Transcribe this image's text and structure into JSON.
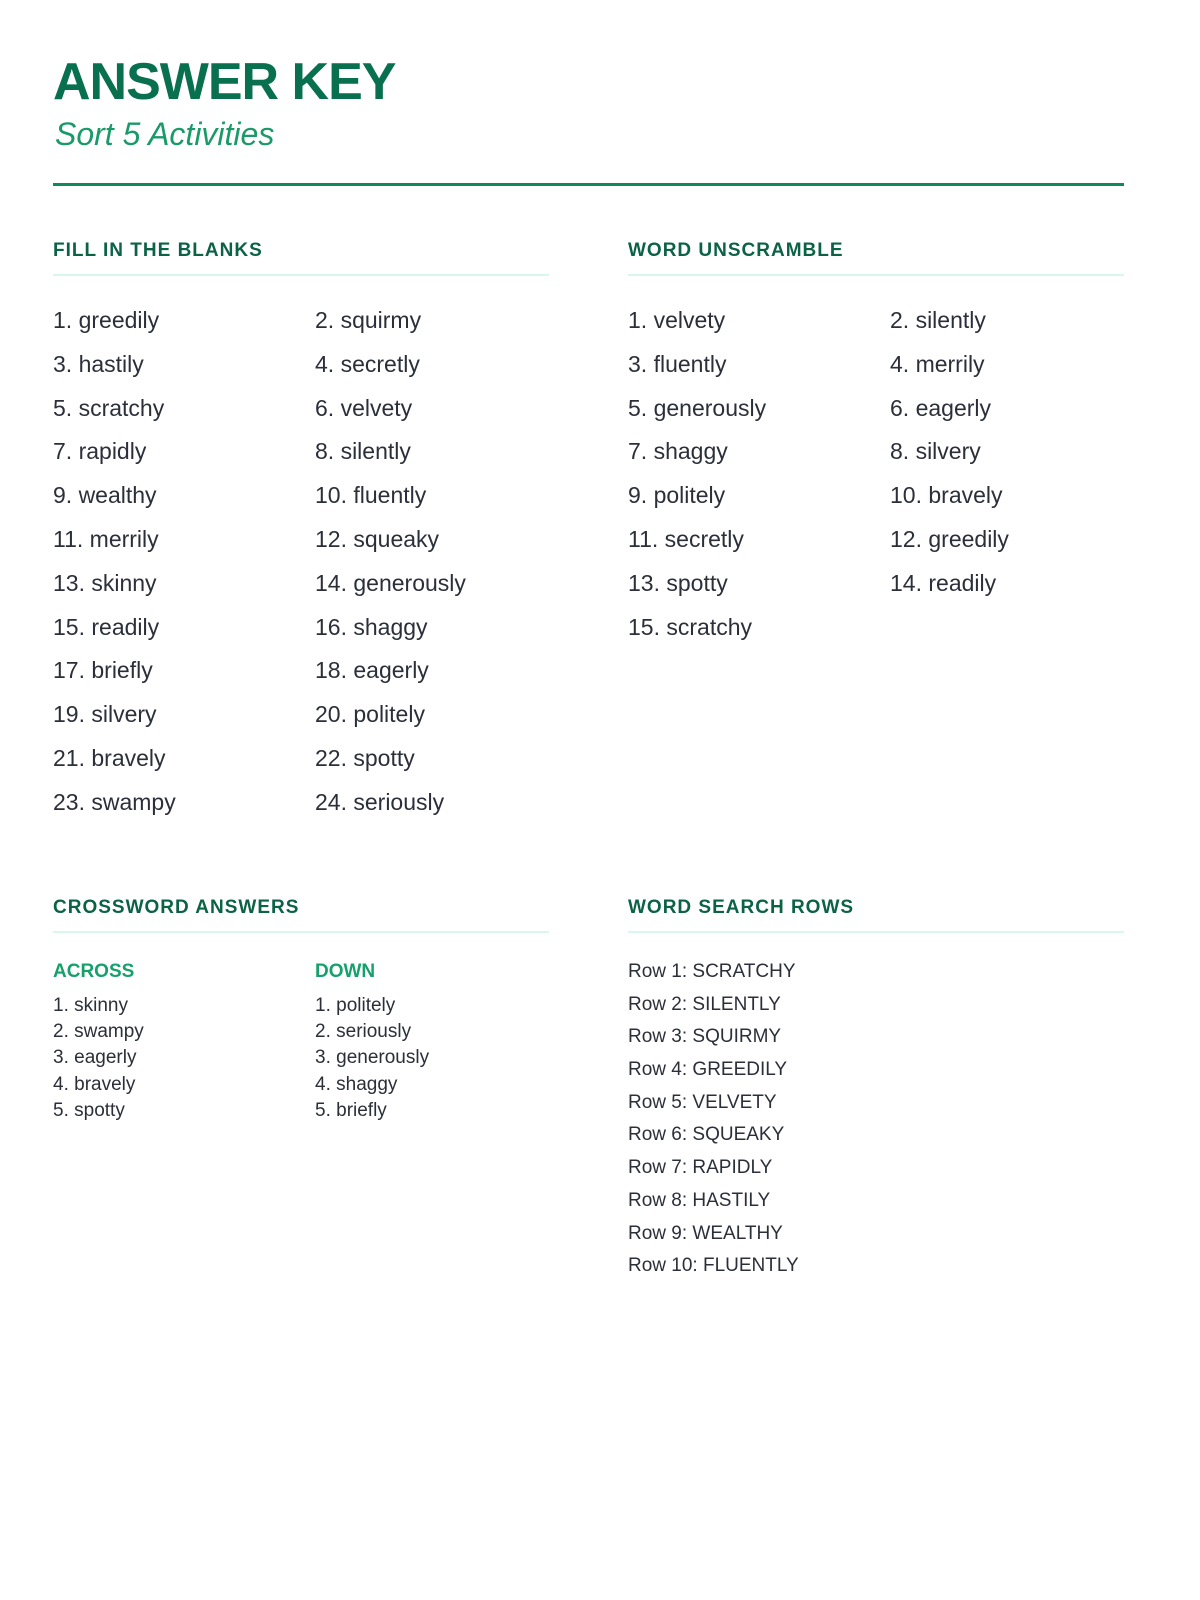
{
  "header": {
    "title": "ANSWER KEY",
    "subtitle": "Sort 5 Activities"
  },
  "colors": {
    "title": "#08704f",
    "subtitle": "#1a9a68",
    "accent_rule": "#0f8a5c",
    "section_rule": "#daf7ec"
  },
  "fill_in_the_blanks": {
    "heading": "FILL IN THE BLANKS",
    "items": [
      "1. greedily",
      "2. squirmy",
      "3. hastily",
      "4. secretly",
      "5. scratchy",
      "6. velvety",
      "7. rapidly",
      "8. silently",
      "9. wealthy",
      "10. fluently",
      "11. merrily",
      "12. squeaky",
      "13. skinny",
      "14. generously",
      "15. readily",
      "16. shaggy",
      "17. briefly",
      "18. eagerly",
      "19. silvery",
      "20. politely",
      "21. bravely",
      "22. spotty",
      "23. swampy",
      "24. seriously"
    ]
  },
  "word_unscramble": {
    "heading": "WORD UNSCRAMBLE",
    "items": [
      "1. velvety",
      "2. silently",
      "3. fluently",
      "4. merrily",
      "5. generously",
      "6. eagerly",
      "7. shaggy",
      "8. silvery",
      "9. politely",
      "10. bravely",
      "11. secretly",
      "12. greedily",
      "13. spotty",
      "14. readily",
      "15. scratchy"
    ]
  },
  "crossword": {
    "heading": "CROSSWORD ANSWERS",
    "across": {
      "label": "ACROSS",
      "items": [
        "1. skinny",
        "2. swampy",
        "3. eagerly",
        "4. bravely",
        "5. spotty"
      ]
    },
    "down": {
      "label": "DOWN",
      "items": [
        "1. politely",
        "2. seriously",
        "3. generously",
        "4. shaggy",
        "5. briefly"
      ]
    }
  },
  "word_search": {
    "heading": "WORD SEARCH ROWS",
    "rows": [
      "Row 1: SCRATCHY",
      "Row 2: SILENTLY",
      "Row 3: SQUIRMY",
      "Row 4: GREEDILY",
      "Row 5: VELVETY",
      "Row 6: SQUEAKY",
      "Row 7: RAPIDLY",
      "Row 8: HASTILY",
      "Row 9: WEALTHY",
      "Row 10: FLUENTLY"
    ]
  }
}
